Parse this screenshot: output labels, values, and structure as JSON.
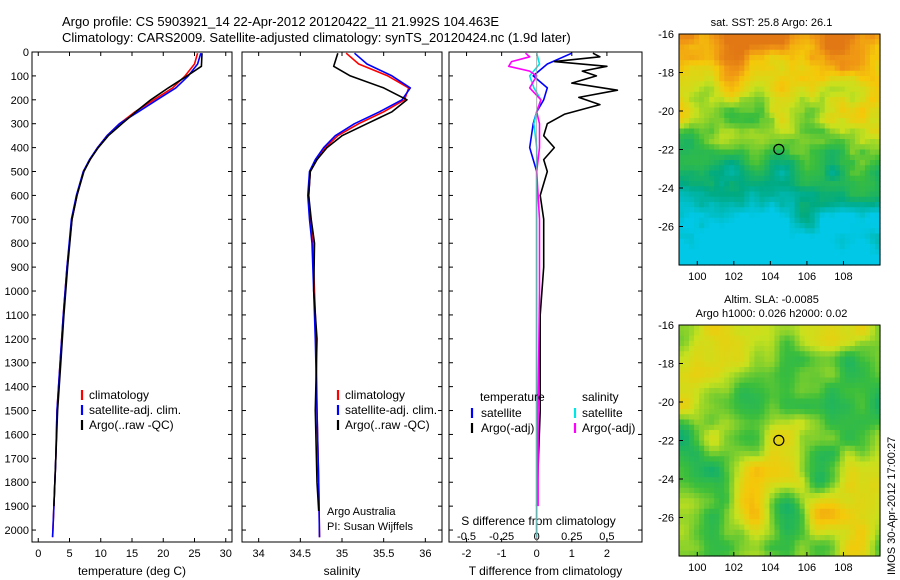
{
  "header": {
    "line1": "Argo profile: CS 5903921_14 22-Apr-2012 20120422_11 21.992S 104.463E",
    "line2": "Climatology: CARS2009. Satellite-adjusted climatology: synTS_20120424.nc (1.9d later)"
  },
  "side_label": "IMOS 30-Apr-2012 17:00:27",
  "credit": [
    "Argo Australia",
    "PI: Susan Wijffels"
  ],
  "colors": {
    "climatology": "#ff0000",
    "satellite": "#0000ff",
    "argo": "#000000",
    "sal_sat": "#00e5e5",
    "sal_argo": "#ff00ff"
  },
  "chart_data": [
    {
      "type": "line",
      "xlabel": "temperature (deg C)",
      "xlim": [
        -1,
        31
      ],
      "xticks": [
        0,
        5,
        10,
        15,
        20,
        25,
        30
      ],
      "ylim": [
        0,
        2050
      ],
      "yticks": [
        0,
        100,
        200,
        300,
        400,
        500,
        600,
        700,
        800,
        900,
        1000,
        1100,
        1200,
        1300,
        1400,
        1500,
        1600,
        1700,
        1800,
        1900,
        2000
      ],
      "legend": [
        "climatology",
        "satellite-adj. clim.",
        "Argo(..raw -QC)"
      ],
      "series": [
        {
          "name": "climatology",
          "color": "#ff0000",
          "x": [
            25.5,
            25.0,
            23.5,
            21.5,
            18.5,
            15.5,
            13.0,
            11.0,
            9.5,
            8.3,
            7.2,
            6.2,
            5.4,
            4.6,
            4.0,
            3.5,
            3.0,
            2.8,
            2.5,
            2.3
          ],
          "y": [
            5,
            50,
            100,
            150,
            200,
            250,
            300,
            350,
            400,
            450,
            500,
            600,
            700,
            900,
            1100,
            1300,
            1500,
            1700,
            1900,
            2030
          ]
        },
        {
          "name": "satellite-adj. clim.",
          "color": "#0000ff",
          "x": [
            26.0,
            25.5,
            24.0,
            22.0,
            19.0,
            16.0,
            13.0,
            11.0,
            9.5,
            8.2,
            7.2,
            6.1,
            5.3,
            4.6,
            4.0,
            3.5,
            3.0,
            2.8,
            2.5,
            2.3
          ],
          "y": [
            5,
            50,
            100,
            150,
            200,
            250,
            300,
            350,
            400,
            450,
            500,
            600,
            700,
            900,
            1100,
            1300,
            1500,
            1700,
            1900,
            2030
          ]
        },
        {
          "name": "Argo(..raw -QC)",
          "color": "#000000",
          "x": [
            26.2,
            26.1,
            23.8,
            20.8,
            18.0,
            15.6,
            13.4,
            11.2,
            9.6,
            8.3,
            7.3,
            6.2,
            5.4,
            4.7,
            4.1,
            3.6,
            3.1,
            2.8,
            2.5
          ],
          "y": [
            5,
            60,
            100,
            150,
            200,
            250,
            300,
            350,
            400,
            450,
            500,
            600,
            700,
            900,
            1100,
            1300,
            1500,
            1700,
            1900
          ]
        }
      ]
    },
    {
      "type": "line",
      "xlabel": "salinity",
      "xlim": [
        33.8,
        36.2
      ],
      "xticks": [
        34,
        34.5,
        35,
        35.5,
        36
      ],
      "xticklabels": [
        "34",
        "34.5",
        "35",
        "35.5",
        "36"
      ],
      "ylim": [
        0,
        2050
      ],
      "legend": [
        "climatology",
        "satellite-adj. clim.",
        "Argo(..raw -QC)"
      ],
      "series": [
        {
          "name": "climatology",
          "color": "#ff0000",
          "x": [
            35.05,
            35.2,
            35.55,
            35.8,
            35.75,
            35.5,
            35.2,
            34.95,
            34.8,
            34.7,
            34.62,
            34.6,
            34.62,
            34.65,
            34.67,
            34.69,
            34.7,
            34.72,
            34.73
          ],
          "y": [
            5,
            50,
            100,
            150,
            200,
            250,
            300,
            350,
            400,
            450,
            500,
            600,
            700,
            800,
            1000,
            1200,
            1500,
            1800,
            2030
          ]
        },
        {
          "name": "satellite-adj. clim.",
          "color": "#0000ff",
          "x": [
            35.15,
            35.3,
            35.6,
            35.82,
            35.72,
            35.45,
            35.15,
            34.92,
            34.78,
            34.68,
            34.61,
            34.59,
            34.61,
            34.64,
            34.66,
            34.68,
            34.7,
            34.72,
            34.73
          ],
          "y": [
            5,
            50,
            100,
            150,
            200,
            250,
            300,
            350,
            400,
            450,
            500,
            600,
            700,
            800,
            1000,
            1200,
            1500,
            1800,
            2030
          ]
        },
        {
          "name": "Argo(..raw -QC)",
          "color": "#000000",
          "x": [
            34.95,
            34.9,
            35.1,
            35.5,
            35.78,
            35.6,
            35.3,
            35.0,
            34.82,
            34.7,
            34.62,
            34.6,
            34.63,
            34.67,
            34.66,
            34.7,
            34.68,
            34.7,
            34.72
          ],
          "y": [
            5,
            60,
            100,
            150,
            200,
            250,
            300,
            350,
            400,
            450,
            500,
            600,
            700,
            800,
            1000,
            1200,
            1500,
            1800,
            1920
          ]
        }
      ]
    },
    {
      "type": "line",
      "xlabel": "T difference from climatology",
      "x2label": "S difference from climatology",
      "xlim": [
        -2.5,
        3.0
      ],
      "xticks": [
        -2,
        -1,
        0,
        1,
        2
      ],
      "x2lim": [
        -0.625,
        0.75
      ],
      "x2ticks": [
        -0.5,
        -0.25,
        0,
        0.25,
        0.5
      ],
      "ylim": [
        0,
        2050
      ],
      "legend_temperature": {
        "title": "temperature",
        "items": [
          "satellite",
          "Argo(-adj)"
        ]
      },
      "legend_salinity": {
        "title": "salinity",
        "items": [
          "satellite",
          "Argo(-adj)"
        ]
      },
      "series": [
        {
          "name": "T satellite",
          "color": "#0000ff",
          "x": [
            1.0,
            0.3,
            -0.1,
            0.3,
            0.2,
            0.0,
            -0.1,
            -0.2,
            0.0,
            0.0,
            0.0,
            0.0,
            0.0
          ],
          "y": [
            5,
            50,
            100,
            150,
            200,
            250,
            300,
            400,
            500,
            700,
            1000,
            1500,
            2030
          ]
        },
        {
          "name": "T Argo(-adj)",
          "color": "#000000",
          "x": [
            1.6,
            1.8,
            0.5,
            2.0,
            1.3,
            1.7,
            1.0,
            2.3,
            1.2,
            1.8,
            0.8,
            0.3,
            0.2,
            0.5,
            0.2,
            0.3,
            0.1,
            0.2,
            0.2,
            0.1,
            0.1,
            0.0
          ],
          "y": [
            5,
            20,
            40,
            60,
            80,
            100,
            130,
            160,
            190,
            220,
            260,
            300,
            350,
            400,
            450,
            500,
            600,
            700,
            900,
            1100,
            1500,
            1900
          ]
        },
        {
          "name": "S satellite",
          "color": "#00e5e5",
          "x": [
            0.0,
            0.02,
            -0.05,
            -0.02,
            0.03,
            0.0,
            -0.02,
            0.0,
            0.0,
            0.0,
            0.0
          ],
          "y": [
            5,
            50,
            100,
            150,
            200,
            250,
            300,
            400,
            700,
            1200,
            2030
          ]
        },
        {
          "name": "S Argo(-adj)",
          "color": "#ff00ff",
          "x": [
            -0.08,
            -0.05,
            -0.18,
            -0.2,
            -0.05,
            0.0,
            -0.05,
            0.03,
            0.0,
            0.02,
            0.02,
            0.0,
            0.02,
            0.02,
            0.01,
            0.01
          ],
          "y": [
            5,
            20,
            40,
            60,
            80,
            100,
            150,
            200,
            250,
            300,
            400,
            500,
            700,
            1000,
            1500,
            1900
          ]
        }
      ]
    },
    {
      "type": "heatmap",
      "title": "sat. SST: 25.8 Argo: 26.1",
      "xlim": [
        99,
        110
      ],
      "ylim": [
        -28,
        -16
      ],
      "xticks": [
        100,
        102,
        104,
        106,
        108
      ],
      "yticks": [
        -16,
        -18,
        -20,
        -22,
        -24,
        -26
      ],
      "marker": [
        104.463,
        -21.992
      ]
    },
    {
      "type": "heatmap",
      "title": [
        "Altim. SLA: -0.0085",
        "Argo h1000: 0.026 h2000: 0.02"
      ],
      "xlim": [
        99,
        110
      ],
      "ylim": [
        -28,
        -16
      ],
      "xticks": [
        100,
        102,
        104,
        106,
        108
      ],
      "yticks": [
        -16,
        -18,
        -20,
        -22,
        -24,
        -26
      ],
      "marker": [
        104.463,
        -21.992
      ]
    }
  ]
}
